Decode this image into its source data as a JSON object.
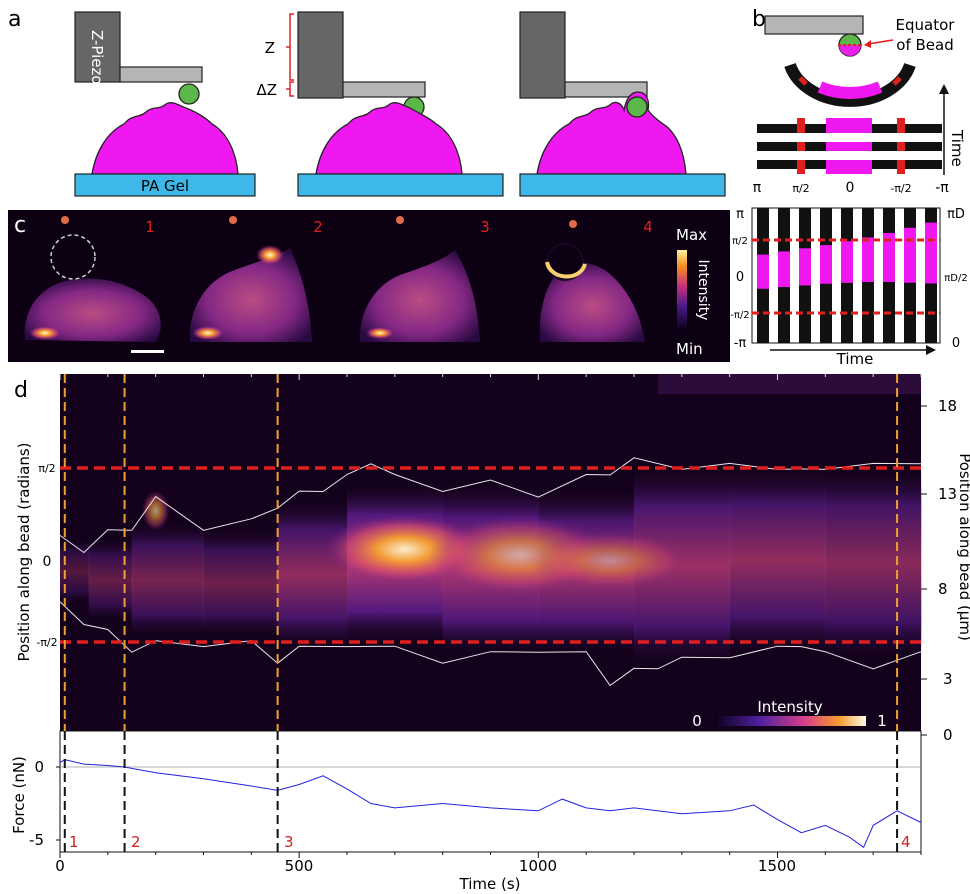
{
  "panels": {
    "a": {
      "label": "a",
      "zpiezo_label": "Z-Piezo",
      "z_label": "Z",
      "dz_label": "ΔZ",
      "gel_label": "PA Gel"
    },
    "b": {
      "label": "b",
      "equator_line1": "Equator",
      "equator_line2": "of Bead",
      "time_axis_label": "Time",
      "angle_ticks": [
        "π",
        "π/2",
        "0",
        "-π/2",
        "-π"
      ],
      "kymo_left_ticks": [
        "π",
        "π/2",
        "0",
        "-π/2",
        "-π"
      ],
      "kymo_right_ticks": [
        "πD",
        "πD/2",
        "0"
      ],
      "kymo_time_label": "Time"
    },
    "c": {
      "label": "c",
      "frame_numbers": [
        "1",
        "2",
        "3",
        "4"
      ],
      "colorbar_max": "Max",
      "colorbar_min": "Min",
      "colorbar_title": "Intensity"
    },
    "d": {
      "label": "d",
      "left_axis_label": "Position along bead (radians)",
      "left_ticks": [
        "π/2",
        "0",
        "-π/2"
      ],
      "right_axis_label": "Position along bead (µm)",
      "right_ticks": [
        "18",
        "13",
        "8",
        "3",
        "0"
      ],
      "colorbar_title": "Intensity",
      "colorbar_min": "0",
      "colorbar_max": "1",
      "force_axis_label": "Force (nN)",
      "force_ticks": [
        "0",
        "-5"
      ],
      "x_ticks": [
        "0",
        "500",
        "1000",
        "1500"
      ],
      "x_axis_label": "Time (s)",
      "event_labels": [
        "1",
        "2",
        "3",
        "4"
      ]
    }
  },
  "colors": {
    "cell_magenta": "#f018f0",
    "bead_green": "#5cb84a",
    "gel_blue": "#3db8e8",
    "piezo_dark": "#666666",
    "cantilever_gray": "#b5b5b5",
    "marker_red": "#e02020",
    "trace_blue": "#2222dd",
    "dashed_orange": "#f0a030"
  },
  "chart_data": {
    "type": "line",
    "title": "",
    "xlabel": "Time (s)",
    "ylabel": "Force (nN)",
    "xlim": [
      0,
      1800
    ],
    "ylim": [
      -6,
      2
    ],
    "event_times": [
      10,
      135,
      455,
      1750
    ],
    "series": [
      {
        "x": [
          0,
          10,
          50,
          100,
          135,
          200,
          300,
          400,
          455,
          500,
          550,
          600,
          650,
          700,
          800,
          900,
          1000,
          1050,
          1100,
          1150,
          1200,
          1300,
          1400,
          1450,
          1500,
          1550,
          1600,
          1650,
          1680,
          1700,
          1750,
          1800
        ],
        "y": [
          0.3,
          0.5,
          0.2,
          0.1,
          0.0,
          -0.4,
          -0.8,
          -1.3,
          -1.6,
          -1.2,
          -0.6,
          -1.5,
          -2.5,
          -2.8,
          -2.5,
          -2.8,
          -3.0,
          -2.2,
          -2.8,
          -3.0,
          -2.8,
          -3.2,
          -3.0,
          -2.6,
          -3.6,
          -4.5,
          -4.0,
          -4.8,
          -5.5,
          -4.0,
          -3.0,
          -3.8
        ]
      }
    ],
    "upper_boundary_radians": {
      "x": [
        0,
        50,
        100,
        150,
        200,
        300,
        400,
        455,
        500,
        550,
        600,
        650,
        700,
        800,
        900,
        1000,
        1100,
        1150,
        1200,
        1300,
        1400,
        1500,
        1550,
        1600,
        1700,
        1800
      ],
      "y": [
        0.3,
        0.1,
        0.4,
        0.5,
        1.0,
        0.5,
        0.6,
        0.9,
        1.1,
        1.2,
        1.4,
        1.7,
        1.4,
        1.2,
        1.3,
        1.1,
        1.4,
        1.5,
        1.7,
        1.6,
        1.6,
        1.6,
        1.5,
        1.6,
        1.6,
        1.7
      ]
    },
    "lower_boundary_radians": {
      "x": [
        0,
        50,
        100,
        150,
        200,
        300,
        400,
        455,
        500,
        600,
        700,
        800,
        900,
        1000,
        1100,
        1150,
        1200,
        1250,
        1300,
        1400,
        1500,
        1550,
        1600,
        1700,
        1800
      ],
      "y": [
        -0.9,
        -1.2,
        -1.4,
        -1.7,
        -1.6,
        -1.6,
        -1.6,
        -1.9,
        -1.7,
        -1.6,
        -1.7,
        -1.9,
        -1.8,
        -1.7,
        -1.8,
        -2.3,
        -2.1,
        -2.0,
        -1.9,
        -1.8,
        -1.7,
        -1.6,
        -1.8,
        -2.0,
        -1.8
      ]
    }
  }
}
